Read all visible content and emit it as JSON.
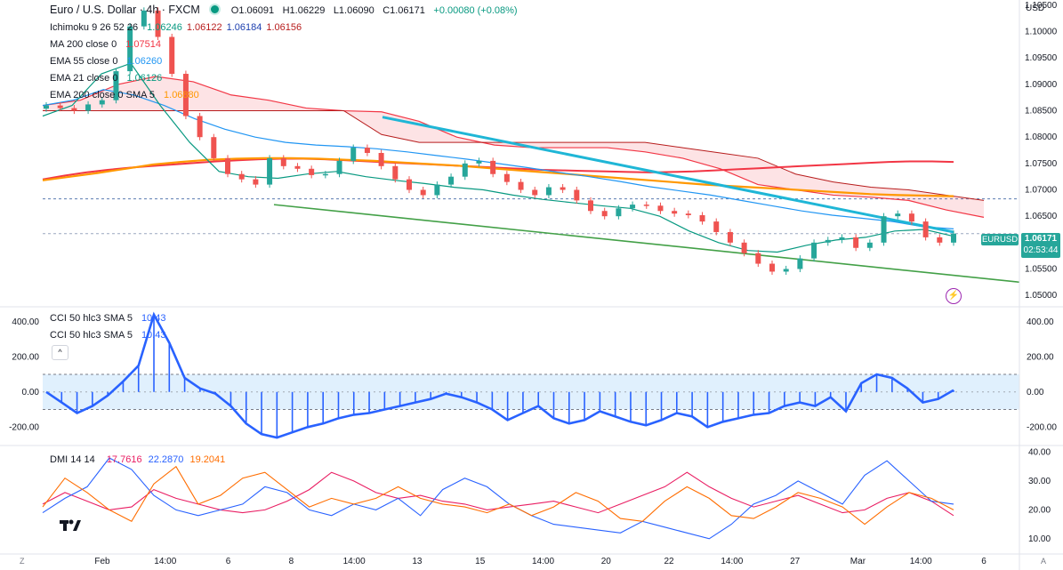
{
  "header": {
    "title": "Euro / U.S. Dollar · 4h · FXCM",
    "open": "O1.06091",
    "high": "H1.06229",
    "low": "L1.06090",
    "close": "C1.06171",
    "change": "+0.00080 (+0.08%)"
  },
  "indicators": [
    {
      "label": "Ichimoku 9 26 52 26",
      "values": [
        "1.06246",
        "1.06122",
        "1.06184",
        "1.06156"
      ],
      "colors": [
        "#089981",
        "#b71c1c",
        "#1e40af",
        "#b71c1c"
      ]
    },
    {
      "label": "MA 200 close 0",
      "values": [
        "1.07514"
      ],
      "colors": [
        "#f23645"
      ]
    },
    {
      "label": "EMA 55 close 0",
      "values": [
        "1.06260"
      ],
      "colors": [
        "#2196f3"
      ]
    },
    {
      "label": "EMA 21 close 0",
      "values": [
        "1.06126"
      ],
      "colors": [
        "#089981"
      ]
    },
    {
      "label": "EMA 200 close 0 SMA 5",
      "values": [
        "1.06880"
      ],
      "colors": [
        "#ff9800"
      ]
    }
  ],
  "cci_legend": [
    {
      "label": "CCI 50 hlc3 SMA 5",
      "value": "10.43"
    },
    {
      "label": "CCI 50 hlc3 SMA 5",
      "value": "10.43"
    }
  ],
  "dmi_legend": {
    "label": "DMI 14 14",
    "plus_di": "17.7616",
    "minus_di": "22.2870",
    "adx": "19.2041"
  },
  "price_axis": {
    "currency": "USD",
    "ticks": [
      "1.10500",
      "1.10000",
      "1.09500",
      "1.09000",
      "1.08500",
      "1.08000",
      "1.07500",
      "1.07000",
      "1.06500",
      "1.06000",
      "1.05500",
      "1.05000"
    ],
    "last_price": "1.06171",
    "countdown": "02:53:44",
    "symbol": "EURUSD"
  },
  "cci_axis": {
    "ticks": [
      "400.00",
      "200.00",
      "0.00",
      "-200.00"
    ]
  },
  "dmi_axis": {
    "ticks": [
      "40.00",
      "30.00",
      "20.00",
      "10.00"
    ]
  },
  "time_axis": {
    "labels": [
      "Feb",
      "14:00",
      "6",
      "8",
      "14:00",
      "13",
      "15",
      "14:00",
      "20",
      "22",
      "14:00",
      "27",
      "Mar",
      "14:00",
      "6"
    ]
  },
  "colors": {
    "up": "#26a69a",
    "down": "#ef5350",
    "cloud_bear": "#f23645",
    "cloud_bull": "#089981",
    "trend_blue": "#1fb6d6",
    "trend_green": "#43a047",
    "cci_line": "#2962ff",
    "plus_di": "#e91e63",
    "minus_di": "#2962ff",
    "adx": "#ff6d00"
  },
  "chart_data": [
    {
      "type": "candlestick",
      "title": "Euro / U.S. Dollar · 4h · FXCM",
      "ylim": [
        1.048,
        1.106
      ],
      "x_labels": [
        "Feb",
        "14:00",
        "6",
        "8",
        "14:00",
        "13",
        "15",
        "14:00",
        "20",
        "22",
        "14:00",
        "27",
        "Mar",
        "14:00",
        "6"
      ],
      "close_path": [
        1.086,
        1.0855,
        1.085,
        1.0862,
        1.087,
        1.0925,
        1.101,
        1.104,
        1.099,
        1.092,
        1.084,
        1.08,
        1.076,
        1.073,
        1.072,
        1.071,
        1.076,
        1.0745,
        1.074,
        1.0728,
        1.073,
        1.0755,
        1.078,
        1.077,
        1.0745,
        1.072,
        1.07,
        1.069,
        1.071,
        1.0725,
        1.075,
        1.0755,
        1.073,
        1.0715,
        1.07,
        1.069,
        1.0705,
        1.07,
        1.068,
        1.066,
        1.065,
        1.0665,
        1.0672,
        1.067,
        1.066,
        1.0655,
        1.0652,
        1.064,
        1.062,
        1.06,
        1.058,
        1.056,
        1.0545,
        1.055,
        1.057,
        1.06,
        1.0605,
        1.061,
        1.059,
        1.06,
        1.065,
        1.0655,
        1.064,
        1.061,
        1.06,
        1.0617
      ],
      "lines": {
        "ma200": [
          1.072,
          1.0727,
          1.0733,
          1.0738,
          1.0742,
          1.0745,
          1.0748,
          1.0751,
          1.0754,
          1.0756,
          1.0758,
          1.0759,
          1.0759,
          1.0758,
          1.0756,
          1.0754,
          1.0752,
          1.075,
          1.0748,
          1.0746,
          1.0744,
          1.0742,
          1.074,
          1.0738,
          1.0737,
          1.0736,
          1.0735,
          1.0734,
          1.0733,
          1.0734,
          1.0735,
          1.0737,
          1.0739,
          1.0741,
          1.0743,
          1.0745,
          1.0747,
          1.0749,
          1.0751,
          1.0753,
          1.0754,
          1.0754,
          1.0753
        ],
        "ema200": [
          1.0718,
          1.0725,
          1.0732,
          1.074,
          1.0748,
          1.0753,
          1.0757,
          1.0759,
          1.076,
          1.076,
          1.0759,
          1.0757,
          1.0755,
          1.0752,
          1.0749,
          1.0746,
          1.0742,
          1.0738,
          1.0734,
          1.073,
          1.0726,
          1.0722,
          1.0718,
          1.0714,
          1.071,
          1.0707,
          1.0704,
          1.0701,
          1.0698,
          1.0695,
          1.0692,
          1.069,
          1.0689,
          1.0688
        ],
        "ema55": [
          1.086,
          1.087,
          1.089,
          1.088,
          1.086,
          1.0835,
          1.0815,
          1.08,
          1.079,
          1.0785,
          1.0782,
          1.0778,
          1.0772,
          1.0765,
          1.0758,
          1.075,
          1.0742,
          1.0733,
          1.0725,
          1.0716,
          1.0706,
          1.0698,
          1.069,
          1.068,
          1.067,
          1.066,
          1.0652,
          1.0646,
          1.064,
          1.063,
          1.0626
        ],
        "ema21": [
          1.084,
          1.086,
          1.092,
          1.094,
          1.086,
          1.079,
          1.0735,
          1.0725,
          1.0722,
          1.073,
          1.0735,
          1.0725,
          1.0718,
          1.0712,
          1.0705,
          1.07,
          1.069,
          1.0682,
          1.0676,
          1.067,
          1.0665,
          1.065,
          1.0622,
          1.06,
          1.0585,
          1.0582,
          1.0595,
          1.0605,
          1.061,
          1.0622,
          1.0625,
          1.0612
        ]
      },
      "trendlines": [
        {
          "name": "descending resistance",
          "from": 1.0838,
          "to": 1.062
        },
        {
          "name": "descending support",
          "from": 1.0672,
          "to": 1.0525
        }
      ],
      "reference_levels": [
        1.0683,
        1.0617
      ]
    },
    {
      "type": "histogram",
      "title": "CCI 50 hlc3 SMA 5",
      "ylim": [
        -300,
        480
      ],
      "band": [
        100,
        -100
      ],
      "values": [
        0,
        -60,
        -120,
        -80,
        -20,
        60,
        150,
        440,
        280,
        80,
        20,
        -10,
        -80,
        -180,
        -240,
        -260,
        -230,
        -200,
        -180,
        -150,
        -130,
        -120,
        -100,
        -80,
        -60,
        -40,
        -10,
        -30,
        -60,
        -100,
        -160,
        -120,
        -80,
        -150,
        -180,
        -160,
        -110,
        -140,
        -170,
        -190,
        -160,
        -120,
        -140,
        -200,
        -170,
        -150,
        -130,
        -120,
        -80,
        -60,
        -80,
        -30,
        -110,
        50,
        100,
        80,
        20,
        -60,
        -40,
        10
      ]
    },
    {
      "type": "line",
      "title": "DMI 14 14",
      "ylim": [
        5,
        42
      ],
      "series": [
        {
          "name": "+DI",
          "values": [
            22,
            26,
            23,
            20,
            21,
            27,
            24,
            22,
            20,
            19,
            20,
            23,
            27,
            33,
            30,
            26,
            24,
            25,
            23,
            22,
            20,
            21,
            22,
            23,
            21,
            19,
            22,
            25,
            28,
            33,
            28,
            24,
            21,
            23,
            25,
            22,
            19,
            20,
            24,
            26,
            23,
            18
          ]
        },
        {
          "name": "-DI",
          "values": [
            19,
            24,
            28,
            38,
            34,
            25,
            20,
            18,
            20,
            22,
            28,
            26,
            20,
            18,
            22,
            20,
            24,
            18,
            27,
            31,
            28,
            22,
            18,
            15,
            14,
            13,
            12,
            16,
            14,
            12,
            10,
            15,
            22,
            25,
            30,
            26,
            22,
            32,
            37,
            30,
            23,
            22
          ]
        },
        {
          "name": "ADX",
          "values": [
            21,
            31,
            26,
            20,
            16,
            29,
            35,
            22,
            25,
            31,
            33,
            27,
            21,
            24,
            22,
            24,
            28,
            24,
            22,
            21,
            19,
            22,
            18,
            21,
            26,
            23,
            17,
            16,
            23,
            28,
            24,
            18,
            17,
            21,
            26,
            24,
            21,
            15,
            21,
            26,
            24,
            20
          ]
        }
      ]
    }
  ]
}
